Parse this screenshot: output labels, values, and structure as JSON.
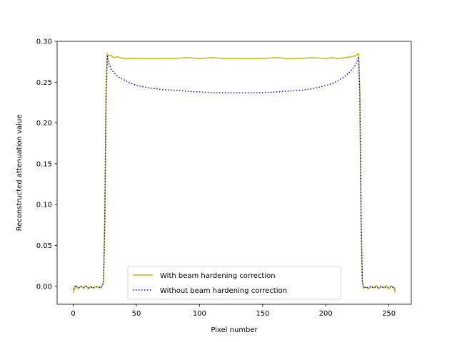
{
  "chart_data": {
    "type": "line",
    "title": "",
    "xlabel": "Pixel number",
    "ylabel": "Reconstructed attenuation value",
    "xlim": [
      -12.75,
      267.75
    ],
    "ylim": [
      -0.022,
      0.3
    ],
    "xticks": [
      0,
      50,
      100,
      150,
      200,
      250
    ],
    "xtick_labels": [
      "0",
      "50",
      "100",
      "150",
      "200",
      "250"
    ],
    "yticks": [
      0.0,
      0.05,
      0.1,
      0.15,
      0.2,
      0.25,
      0.3
    ],
    "ytick_labels": [
      "0.00",
      "0.05",
      "0.10",
      "0.15",
      "0.20",
      "0.25",
      "0.30"
    ],
    "grid": false,
    "legend_position": "lower center",
    "x": [
      0,
      2,
      4,
      6,
      8,
      10,
      12,
      14,
      16,
      18,
      20,
      22,
      24,
      25,
      26,
      27,
      28,
      30,
      32,
      35,
      40,
      45,
      50,
      60,
      70,
      80,
      90,
      100,
      110,
      120,
      130,
      140,
      150,
      160,
      170,
      180,
      190,
      200,
      205,
      210,
      215,
      220,
      223,
      225,
      226,
      227,
      228,
      229,
      230,
      232,
      234,
      236,
      238,
      240,
      242,
      244,
      246,
      248,
      250,
      252,
      254,
      255
    ],
    "series": [
      {
        "name": "With beam hardening correction",
        "color": "#bfbf00",
        "style": "solid",
        "values": [
          -0.008,
          0.001,
          -0.003,
          0.0,
          -0.002,
          0.001,
          -0.003,
          0.0,
          -0.002,
          0.0,
          -0.001,
          -0.002,
          0.005,
          0.08,
          0.24,
          0.285,
          0.282,
          0.283,
          0.28,
          0.281,
          0.279,
          0.279,
          0.279,
          0.279,
          0.279,
          0.279,
          0.28,
          0.279,
          0.28,
          0.279,
          0.279,
          0.279,
          0.279,
          0.28,
          0.279,
          0.279,
          0.28,
          0.279,
          0.28,
          0.279,
          0.28,
          0.281,
          0.282,
          0.284,
          0.285,
          0.24,
          0.08,
          0.005,
          -0.002,
          -0.001,
          -0.003,
          0.0,
          -0.002,
          0.001,
          -0.003,
          0.0,
          -0.002,
          0.001,
          -0.003,
          0.0,
          -0.002,
          -0.008
        ]
      },
      {
        "name": "Without beam hardening correction",
        "color": "#0000ff",
        "style": "dotted",
        "values": [
          -0.004,
          0.001,
          -0.002,
          0.0,
          -0.002,
          0.0,
          -0.002,
          -0.001,
          -0.002,
          -0.001,
          -0.001,
          -0.002,
          0.004,
          0.08,
          0.23,
          0.282,
          0.274,
          0.266,
          0.262,
          0.257,
          0.253,
          0.249,
          0.246,
          0.243,
          0.241,
          0.24,
          0.239,
          0.238,
          0.237,
          0.237,
          0.237,
          0.237,
          0.237,
          0.238,
          0.239,
          0.24,
          0.242,
          0.246,
          0.248,
          0.252,
          0.257,
          0.264,
          0.27,
          0.276,
          0.281,
          0.23,
          0.08,
          0.004,
          -0.002,
          -0.001,
          -0.002,
          0.0,
          -0.002,
          -0.001,
          -0.002,
          0.0,
          -0.002,
          -0.001,
          -0.002,
          0.0,
          -0.002,
          -0.004
        ]
      }
    ]
  }
}
